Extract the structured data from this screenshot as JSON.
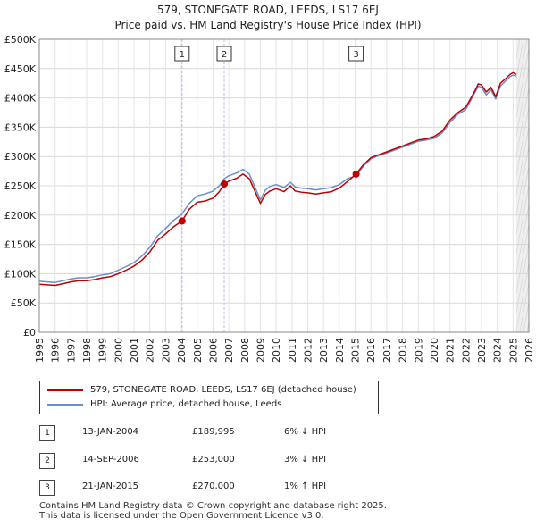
{
  "title": "579, STONEGATE ROAD, LEEDS, LS17 6EJ",
  "subtitle": "Price paid vs. HM Land Registry's House Price Index (HPI)",
  "colors": {
    "price": "#c00000",
    "hpi": "#6a8fc8",
    "marker_line": "#b4bee6",
    "future_band": "#e5e5e5"
  },
  "chart_data": {
    "type": "line",
    "xlim": [
      1995,
      2026
    ],
    "ylim": [
      0,
      500000
    ],
    "yticks": [
      0,
      50000,
      100000,
      150000,
      200000,
      250000,
      300000,
      350000,
      400000,
      450000,
      500000
    ],
    "ytick_labels": [
      "£0",
      "£50K",
      "£100K",
      "£150K",
      "£200K",
      "£250K",
      "£300K",
      "£350K",
      "£400K",
      "£450K",
      "£500K"
    ],
    "xticks": [
      1995,
      1996,
      1997,
      1998,
      1999,
      2000,
      2001,
      2002,
      2003,
      2004,
      2005,
      2006,
      2007,
      2008,
      2009,
      2010,
      2011,
      2012,
      2013,
      2014,
      2015,
      2016,
      2017,
      2018,
      2019,
      2020,
      2021,
      2022,
      2023,
      2024,
      2025,
      2026
    ],
    "xtick_labels": [
      "1995",
      "1996",
      "1997",
      "1998",
      "1999",
      "2000",
      "2001",
      "2002",
      "2003",
      "2004",
      "2005",
      "2006",
      "2007",
      "2008",
      "2009",
      "2010",
      "2011",
      "2012",
      "2013",
      "2014",
      "2015",
      "2016",
      "2017",
      "2018",
      "2019",
      "2020",
      "2021",
      "2022",
      "2023",
      "2024",
      "2025",
      "2026"
    ],
    "grid": true,
    "future_band_start": 2025.2,
    "series": [
      {
        "name": "579, STONEGATE ROAD, LEEDS, LS17 6EJ (detached house)",
        "x": [
          1995.0,
          1995.5,
          1996.0,
          1996.5,
          1997.0,
          1997.5,
          1998.0,
          1998.5,
          1999.0,
          1999.5,
          2000.0,
          2000.5,
          2001.0,
          2001.5,
          2002.0,
          2002.5,
          2003.0,
          2003.5,
          2004.04,
          2004.5,
          2005.0,
          2005.5,
          2006.0,
          2006.4,
          2006.71,
          2007.0,
          2007.5,
          2007.9,
          2008.3,
          2008.7,
          2009.0,
          2009.3,
          2009.6,
          2010.0,
          2010.5,
          2010.9,
          2011.2,
          2011.6,
          2012.0,
          2012.5,
          2013.0,
          2013.5,
          2014.0,
          2014.5,
          2015.06,
          2015.5,
          2016.0,
          2016.5,
          2017.0,
          2017.5,
          2018.0,
          2018.5,
          2019.0,
          2019.5,
          2020.0,
          2020.5,
          2021.0,
          2021.5,
          2022.0,
          2022.3,
          2022.6,
          2022.8,
          2023.0,
          2023.3,
          2023.6,
          2023.9,
          2024.2,
          2024.5,
          2024.8,
          2025.0,
          2025.2
        ],
        "y": [
          82000,
          81000,
          80000,
          83000,
          86000,
          88000,
          88000,
          90000,
          93000,
          95000,
          100000,
          106000,
          113000,
          123000,
          137000,
          157000,
          168000,
          180000,
          189995,
          210000,
          222000,
          224000,
          229000,
          240000,
          253000,
          258000,
          263000,
          270000,
          262000,
          238000,
          220000,
          235000,
          241000,
          245000,
          240000,
          250000,
          241000,
          239000,
          238000,
          236000,
          238000,
          240000,
          246000,
          257000,
          270000,
          285000,
          298000,
          303000,
          308000,
          313000,
          318000,
          323000,
          328000,
          330000,
          334000,
          343000,
          362000,
          375000,
          384000,
          398000,
          413000,
          424000,
          422000,
          410000,
          418000,
          402000,
          425000,
          432000,
          440000,
          443000,
          440000
        ]
      },
      {
        "name": "HPI: Average price, detached house, Leeds",
        "x": [
          1995.0,
          1995.5,
          1996.0,
          1996.5,
          1997.0,
          1997.5,
          1998.0,
          1998.5,
          1999.0,
          1999.5,
          2000.0,
          2000.5,
          2001.0,
          2001.5,
          2002.0,
          2002.5,
          2003.0,
          2003.5,
          2004.04,
          2004.5,
          2005.0,
          2005.5,
          2006.0,
          2006.4,
          2006.71,
          2007.0,
          2007.5,
          2007.9,
          2008.3,
          2008.7,
          2009.0,
          2009.3,
          2009.6,
          2010.0,
          2010.5,
          2010.9,
          2011.2,
          2011.6,
          2012.0,
          2012.5,
          2013.0,
          2013.5,
          2014.0,
          2014.5,
          2015.06,
          2015.5,
          2016.0,
          2016.5,
          2017.0,
          2017.5,
          2018.0,
          2018.5,
          2019.0,
          2019.5,
          2020.0,
          2020.5,
          2021.0,
          2021.5,
          2022.0,
          2022.3,
          2022.6,
          2022.8,
          2023.0,
          2023.3,
          2023.6,
          2023.9,
          2024.2,
          2024.5,
          2024.8,
          2025.0,
          2025.2
        ],
        "y": [
          87000,
          86000,
          85000,
          88000,
          91000,
          93000,
          93000,
          95000,
          98000,
          100000,
          106000,
          112000,
          119000,
          130000,
          145000,
          165000,
          177000,
          191000,
          202000,
          220000,
          233000,
          236000,
          241000,
          250000,
          262000,
          267000,
          272000,
          278000,
          270000,
          245000,
          226000,
          242000,
          249000,
          252000,
          247000,
          256000,
          248000,
          246000,
          245000,
          243000,
          245000,
          247000,
          252000,
          262000,
          267000,
          283000,
          296000,
          302000,
          306000,
          311000,
          316000,
          321000,
          326000,
          328000,
          331000,
          340000,
          358000,
          372000,
          380000,
          395000,
          410000,
          420000,
          418000,
          405000,
          414000,
          398000,
          420000,
          428000,
          436000,
          439000,
          437000
        ]
      }
    ],
    "markers": [
      {
        "label": "1",
        "x": 2004.04,
        "y": 189995
      },
      {
        "label": "2",
        "x": 2006.71,
        "y": 253000
      },
      {
        "label": "3",
        "x": 2015.06,
        "y": 270000
      }
    ]
  },
  "legend": {
    "price_label": "579, STONEGATE ROAD, LEEDS, LS17 6EJ (detached house)",
    "hpi_label": "HPI: Average price, detached house, Leeds"
  },
  "transactions": [
    {
      "num": "1",
      "date": "13-JAN-2004",
      "price": "£189,995",
      "delta": "6% ↓ HPI"
    },
    {
      "num": "2",
      "date": "14-SEP-2006",
      "price": "£253,000",
      "delta": "3% ↓ HPI"
    },
    {
      "num": "3",
      "date": "21-JAN-2015",
      "price": "£270,000",
      "delta": "1% ↑ HPI"
    }
  ],
  "footer": {
    "line1": "Contains HM Land Registry data © Crown copyright and database right 2025.",
    "line2": "This data is licensed under the Open Government Licence v3.0."
  }
}
